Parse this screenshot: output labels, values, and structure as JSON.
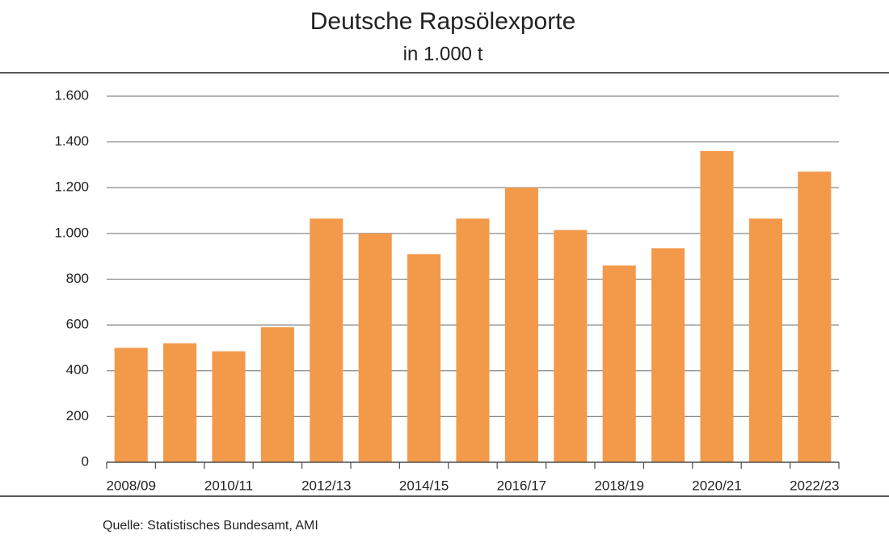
{
  "chart_data": {
    "type": "bar",
    "title": "Deutsche Rapsölexporte",
    "subtitle": "in 1.000 t",
    "categories": [
      "2008/09",
      null,
      "2010/11",
      null,
      "2012/13",
      null,
      "2014/15",
      null,
      "2016/17",
      null,
      "2018/19",
      null,
      "2020/21",
      null,
      "2022/23"
    ],
    "values": [
      500,
      520,
      485,
      590,
      1065,
      1000,
      910,
      1065,
      1200,
      1015,
      860,
      935,
      1360,
      1065,
      1270
    ],
    "color": "#f2994a",
    "ylim": [
      0,
      1600
    ],
    "yticks": [
      0,
      200,
      400,
      600,
      800,
      {
        "value": 1000,
        "label": "1.000"
      },
      {
        "value": 1200,
        "label": "1.200"
      },
      {
        "value": 1400,
        "label": "1.400"
      },
      {
        "value": 1600,
        "label": "1.600"
      }
    ],
    "grid": true,
    "source": "Quelle: Statistisches Bundesamt, AMI"
  }
}
